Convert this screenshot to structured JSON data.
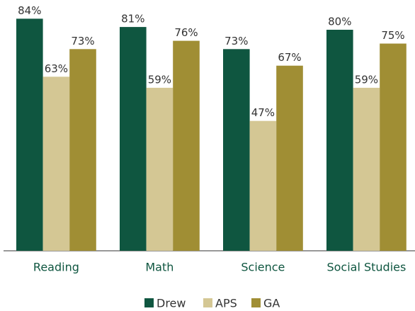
{
  "chart_data": {
    "type": "bar",
    "categories": [
      "Reading",
      "Math",
      "Science",
      "Social Studies"
    ],
    "series": [
      {
        "name": "Drew",
        "color": "#0f5640",
        "values": [
          84,
          81,
          73,
          80
        ],
        "value_labels": [
          "84%",
          "81%",
          "73%",
          "80%"
        ]
      },
      {
        "name": "APS",
        "color": "#d4c794",
        "values": [
          63,
          59,
          47,
          59
        ],
        "value_labels": [
          "63%",
          "59%",
          "47%",
          "59%"
        ]
      },
      {
        "name": "GA",
        "color": "#a08e34",
        "values": [
          73,
          76,
          67,
          75
        ],
        "value_labels": [
          "73%",
          "76%",
          "67%",
          "75%"
        ]
      }
    ],
    "legend": "bottom"
  }
}
